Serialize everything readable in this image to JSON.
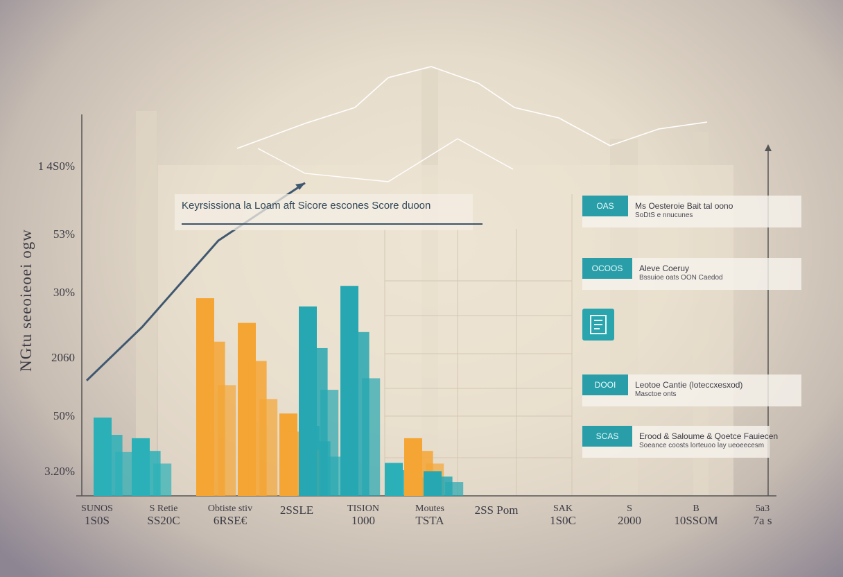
{
  "chart_data": {
    "type": "bar",
    "title": "Keyrsissiona la Loam aft Sicore escones Score duoon",
    "ylabel": "NGtu seeoieoei ogw",
    "y_ticks": [
      "1 4S0%",
      "53%",
      "30%",
      "2060",
      "50%",
      "3.20%"
    ],
    "x_categories": [
      {
        "top": "SUNOS",
        "bottom": "1S0S"
      },
      {
        "top": "S Retie",
        "bottom": "SS20C"
      },
      {
        "top": "Obtiste stiv",
        "bottom": "6RSE€"
      },
      {
        "top": "",
        "bottom": "2SSLE"
      },
      {
        "top": "TISION",
        "bottom": "1000"
      },
      {
        "top": "Moutes",
        "bottom": "TSTA"
      },
      {
        "top": "",
        "bottom": "2SS Pom"
      },
      {
        "top": "SAK",
        "bottom": "1S0C"
      },
      {
        "top": "S",
        "bottom": "2000"
      },
      {
        "top": "B",
        "bottom": "10SSOM"
      },
      {
        "top": "5a3",
        "bottom": "7a s"
      }
    ],
    "series": [
      {
        "color": "#2bb0b8",
        "values": [
          1.9,
          1.4,
          0,
          0,
          0,
          1.7,
          0.8,
          0,
          0,
          0,
          0
        ]
      },
      {
        "color": "#f4a534",
        "values": [
          0,
          0,
          4.8,
          4.2,
          2.0,
          0,
          1.4,
          0,
          0,
          0,
          0
        ]
      },
      {
        "color": "#27a7b1",
        "values": [
          0,
          0,
          0,
          0,
          4.6,
          5.1,
          0.6,
          0,
          0,
          0,
          0
        ]
      }
    ],
    "trend_line": [
      2.8,
      4.1,
      6.2,
      7.6
    ],
    "legend": [
      {
        "badge": "OAS",
        "line1": "Ms Oesteroie Bait tal oono",
        "line2": "SoDtS e nnucunes"
      },
      {
        "badge": "OCOOS",
        "line1": "Aleve Coeruy",
        "line2": "Bssuioe oats OON Caedod"
      },
      {
        "badge": "DOOI",
        "line1": "Leotoe Cantie (loteccxesxod)",
        "line2": "Masctoe onts"
      },
      {
        "badge": "SCAS",
        "line1": "Erood & Saloume & Qoetce Fauiecen",
        "line2": "Soeance coosts lorteuoo lay ueoeecesm"
      }
    ]
  }
}
